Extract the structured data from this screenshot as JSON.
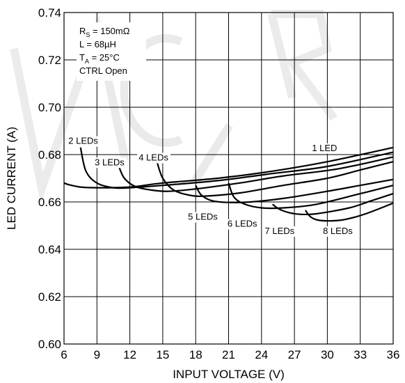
{
  "chart_data": {
    "type": "line",
    "xlabel": "INPUT VOLTAGE (V)",
    "ylabel": "LED CURRENT (A)",
    "xlim": [
      6,
      36
    ],
    "ylim": [
      0.6,
      0.74
    ],
    "x_ticks": [
      "6",
      "9",
      "12",
      "15",
      "18",
      "21",
      "24",
      "27",
      "30",
      "33",
      "36"
    ],
    "y_ticks": [
      "0.60",
      "0.62",
      "0.64",
      "0.66",
      "0.68",
      "0.70",
      "0.72",
      "0.74"
    ],
    "grid": true,
    "conditions": [
      {
        "main": "R",
        "sub": "S",
        "rest": " = 150mΩ"
      },
      {
        "main": "L = 68µH",
        "sub": "",
        "rest": ""
      },
      {
        "main": "T",
        "sub": "A",
        "rest": " = 25°C"
      },
      {
        "main": "CTRL Open",
        "sub": "",
        "rest": ""
      }
    ],
    "series": [
      {
        "name": "1 LED",
        "label_x": 28.6,
        "label_y": 0.6815,
        "x": [
          6,
          6.5,
          7.5,
          9,
          12,
          15,
          20,
          25,
          30,
          36
        ],
        "y": [
          0.668,
          0.6672,
          0.6663,
          0.666,
          0.6663,
          0.668,
          0.67,
          0.673,
          0.677,
          0.683
        ]
      },
      {
        "name": "2 LEDs",
        "label_x": 6.4,
        "label_y": 0.6845,
        "x": [
          7.5,
          8.0,
          9.0,
          10.5,
          12,
          15,
          20,
          25,
          30,
          36
        ],
        "y": [
          0.683,
          0.673,
          0.668,
          0.666,
          0.666,
          0.667,
          0.669,
          0.672,
          0.675,
          0.681
        ]
      },
      {
        "name": "3 LEDs",
        "label_x": 8.8,
        "label_y": 0.6755,
        "x": [
          11.0,
          11.5,
          12.5,
          14,
          15.5,
          18,
          22,
          26,
          31,
          36
        ],
        "y": [
          0.675,
          0.67,
          0.6665,
          0.665,
          0.6645,
          0.6655,
          0.668,
          0.671,
          0.674,
          0.679
        ]
      },
      {
        "name": "4 LEDs",
        "label_x": 12.8,
        "label_y": 0.6775,
        "x": [
          14.5,
          15.0,
          16.0,
          17.5,
          19,
          22,
          26,
          30,
          33,
          36
        ],
        "y": [
          0.6765,
          0.67,
          0.665,
          0.6628,
          0.6625,
          0.6638,
          0.667,
          0.67,
          0.6735,
          0.677
        ]
      },
      {
        "name": "5 LEDs",
        "label_x": 17.3,
        "label_y": 0.6525,
        "x": [
          18.0,
          18.5,
          19.5,
          21,
          23,
          26,
          30,
          33,
          36
        ],
        "y": [
          0.667,
          0.663,
          0.6605,
          0.6598,
          0.66,
          0.6615,
          0.6645,
          0.667,
          0.6695
        ]
      },
      {
        "name": "6 LEDs",
        "label_x": 20.9,
        "label_y": 0.6495,
        "x": [
          21.0,
          21.5,
          22.5,
          24,
          26,
          29,
          33,
          36
        ],
        "y": [
          0.668,
          0.662,
          0.659,
          0.6575,
          0.6575,
          0.659,
          0.6635,
          0.667
        ]
      },
      {
        "name": "7 LEDs",
        "label_x": 24.3,
        "label_y": 0.6465,
        "x": [
          25.0,
          25.6,
          26.5,
          27.5,
          29,
          32,
          34,
          36
        ],
        "y": [
          0.659,
          0.657,
          0.6555,
          0.6548,
          0.655,
          0.6575,
          0.6605,
          0.6635
        ]
      },
      {
        "name": "8 LEDs",
        "label_x": 29.6,
        "label_y": 0.6465,
        "x": [
          28.0,
          28.4,
          29.0,
          30,
          31.5,
          33.5,
          36
        ],
        "y": [
          0.6565,
          0.654,
          0.6525,
          0.652,
          0.6525,
          0.655,
          0.6595
        ]
      }
    ]
  }
}
